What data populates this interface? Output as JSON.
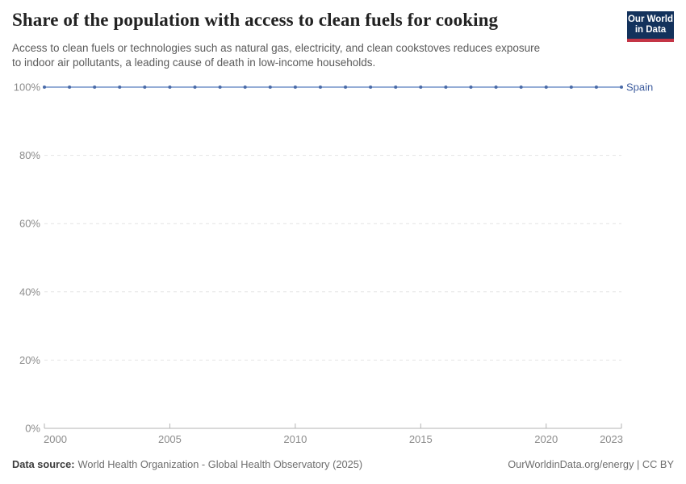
{
  "chart_data": {
    "type": "line",
    "title": "Share of the population with access to clean fuels for cooking",
    "subtitle_lines": [
      "Access to clean fuels or technologies such as natural gas, electricity, and clean cookstoves reduces exposure",
      "to indoor air pollutants, a leading cause of death in low-income households."
    ],
    "x": [
      2000,
      2001,
      2002,
      2003,
      2004,
      2005,
      2006,
      2007,
      2008,
      2009,
      2010,
      2011,
      2012,
      2013,
      2014,
      2015,
      2016,
      2017,
      2018,
      2019,
      2020,
      2021,
      2022,
      2023
    ],
    "series": [
      {
        "name": "Spain",
        "values": [
          100,
          100,
          100,
          100,
          100,
          100,
          100,
          100,
          100,
          100,
          100,
          100,
          100,
          100,
          100,
          100,
          100,
          100,
          100,
          100,
          100,
          100,
          100,
          100
        ],
        "line_color": "#7292c8",
        "marker_color": "#4a6ba8",
        "label_color": "#3d5c9e"
      }
    ],
    "xlim": [
      2000,
      2023
    ],
    "ylim": [
      0,
      100
    ],
    "x_ticks": [
      2000,
      2005,
      2010,
      2015,
      2020,
      2023
    ],
    "y_ticks": [
      0,
      20,
      40,
      60,
      80,
      100
    ],
    "y_tick_suffix": "%",
    "grid": "horizontal-dashed",
    "legend_position": "line-end-label",
    "colors": {
      "grid": "#e4e4e4",
      "axis": "#b3b3b3",
      "tick_labels": "#8c8c8c"
    }
  },
  "header": {
    "logo": {
      "line1": "Our World",
      "line2": "in Data",
      "bg": "#13325c",
      "accent": "#c43546"
    }
  },
  "footer": {
    "source_label": "Data source:",
    "source_text": "World Health Organization - Global Health Observatory (2025)",
    "right_text": "OurWorldinData.org/energy | CC BY"
  }
}
